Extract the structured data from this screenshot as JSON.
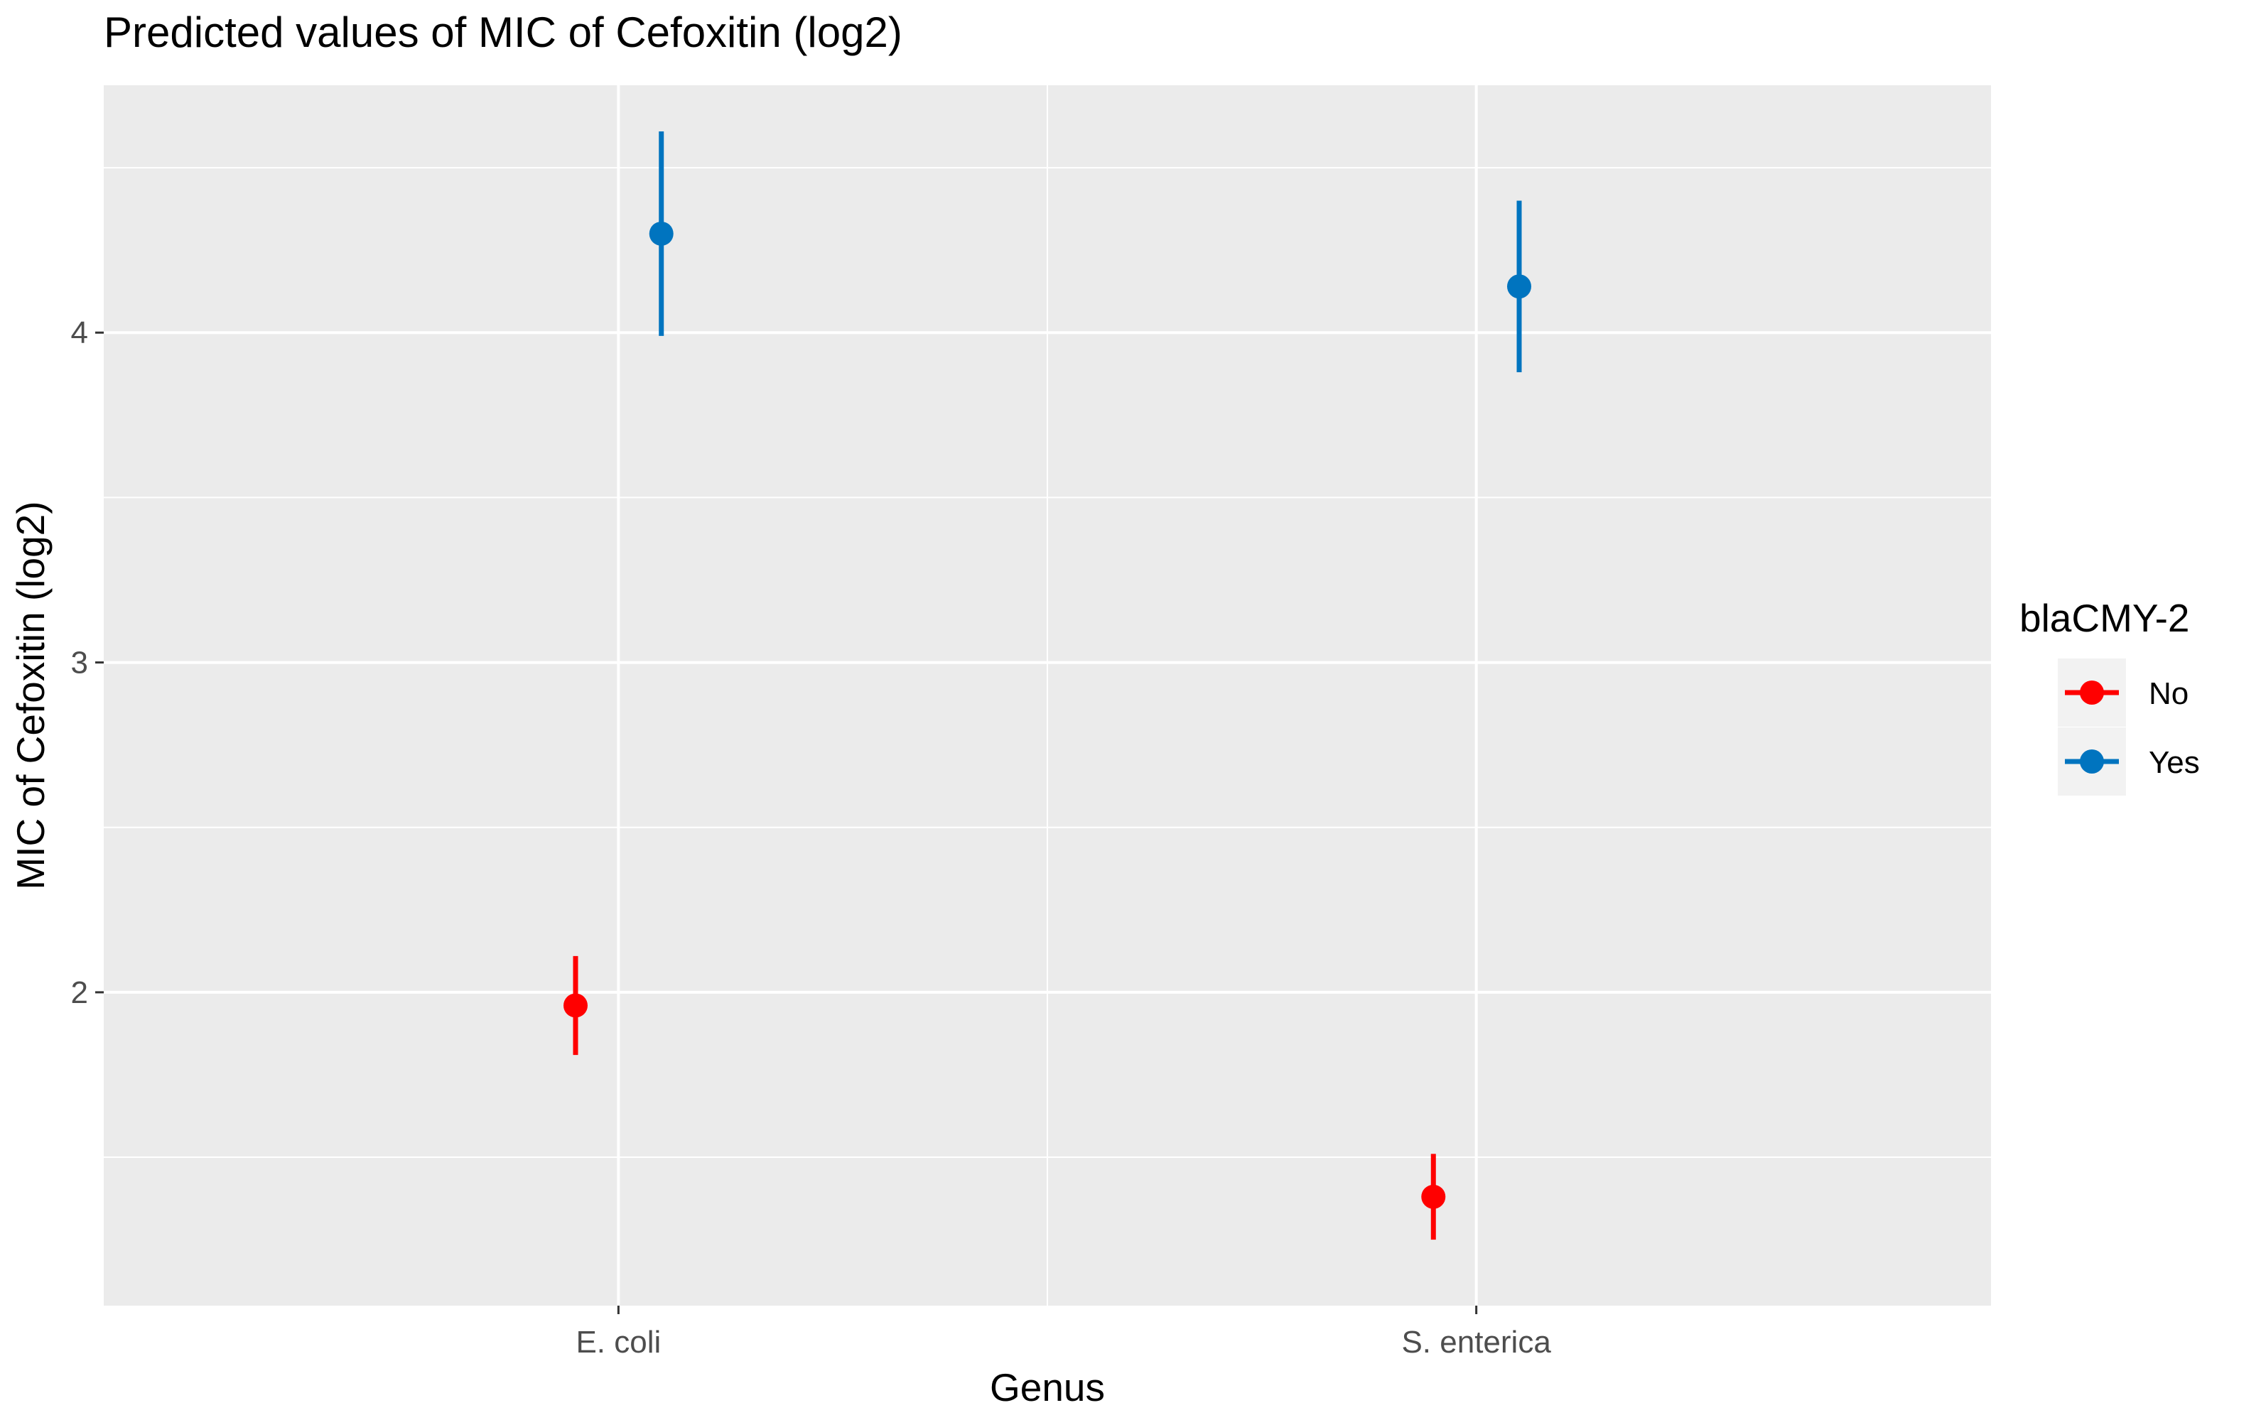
{
  "chart_data": {
    "type": "scatter",
    "title": "Predicted values of MIC of Cefoxitin (log2)",
    "xlabel": "Genus",
    "ylabel": "MIC of Cefoxitin (log2)",
    "categories": [
      "E. coli",
      "S. enterica"
    ],
    "ylim": [
      1.05,
      4.75
    ],
    "yticks": [
      2,
      3,
      4
    ],
    "grid": true,
    "legend": {
      "title": "blaCMY-2",
      "position": "right"
    },
    "series": [
      {
        "name": "No",
        "color": "#ff0000",
        "points": [
          {
            "category": "E. coli",
            "y": 1.96,
            "ymin": 1.81,
            "ymax": 2.11
          },
          {
            "category": "S. enterica",
            "y": 1.38,
            "ymin": 1.25,
            "ymax": 1.51
          }
        ]
      },
      {
        "name": "Yes",
        "color": "#0074bf",
        "points": [
          {
            "category": "E. coli",
            "y": 4.3,
            "ymin": 3.99,
            "ymax": 4.61
          },
          {
            "category": "S. enterica",
            "y": 4.14,
            "ymin": 3.88,
            "ymax": 4.4
          }
        ]
      }
    ]
  }
}
